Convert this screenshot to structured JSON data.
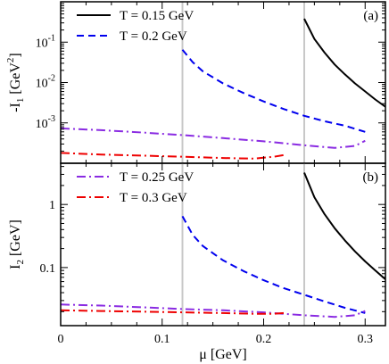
{
  "chart_data": [
    {
      "panel_label": "(a)",
      "type": "line",
      "xlim": [
        0,
        0.32
      ],
      "ylim": [
        0.0001,
        1
      ],
      "yscale": "log",
      "ylabel": "-I1 [GeV2]",
      "ylabel_parts": {
        "prefix": "-I",
        "sub": "1",
        "unit_open": " [GeV",
        "sup": "2",
        "unit_close": "]"
      },
      "xticks": [
        0,
        0.1,
        0.2,
        0.3
      ],
      "yticks": [
        0.001,
        0.01,
        0.1
      ],
      "ytick_labels": [
        {
          "base": "10",
          "exp": "-3"
        },
        {
          "base": "10",
          "exp": "-2"
        },
        {
          "base": "10",
          "exp": "-1"
        }
      ],
      "vlines": [
        0.12,
        0.24
      ],
      "legend": {
        "position": "top-left"
      },
      "series": [
        {
          "name": "T = 0.15 GeV",
          "color": "#000000",
          "dash": "solid",
          "x": [
            0.24,
            0.25,
            0.26,
            0.27,
            0.28,
            0.29,
            0.3,
            0.31,
            0.32
          ],
          "y": [
            0.38,
            0.12,
            0.055,
            0.028,
            0.016,
            0.0095,
            0.006,
            0.0038,
            0.0025
          ]
        },
        {
          "name": "T = 0.2 GeV",
          "color": "#0000ee",
          "dash": "dashed",
          "x": [
            0.12,
            0.13,
            0.14,
            0.16,
            0.18,
            0.2,
            0.22,
            0.24,
            0.26,
            0.28,
            0.3
          ],
          "y": [
            0.065,
            0.032,
            0.019,
            0.0095,
            0.0055,
            0.0034,
            0.0022,
            0.0015,
            0.0011,
            0.00085,
            0.0006
          ]
        },
        {
          "name": "T = 0.25 GeV",
          "color": "#8a2be2",
          "dash": "dashdot",
          "x": [
            0,
            0.04,
            0.08,
            0.12,
            0.16,
            0.2,
            0.24,
            0.27,
            0.29,
            0.3
          ],
          "y": [
            0.00073,
            0.00066,
            0.00058,
            0.0005,
            0.00042,
            0.00035,
            0.00028,
            0.00024,
            0.00027,
            0.00036
          ]
        },
        {
          "name": "T = 0.3 GeV",
          "color": "#ee0000",
          "dash": "dashdot",
          "x": [
            0,
            0.04,
            0.08,
            0.12,
            0.16,
            0.19,
            0.21,
            0.22
          ],
          "y": [
            0.00018,
            0.000165,
            0.000155,
            0.000145,
            0.000135,
            0.00013,
            0.000145,
            0.00016
          ]
        }
      ]
    },
    {
      "panel_label": "(b)",
      "type": "line",
      "xlim": [
        0,
        0.32
      ],
      "ylim": [
        0.012,
        4.5
      ],
      "yscale": "log",
      "xlabel": "μ [GeV]",
      "ylabel": "I2 [GeV]",
      "ylabel_parts": {
        "prefix": "I",
        "sub": "2",
        "unit_open": " [GeV",
        "sup": "",
        "unit_close": "]"
      },
      "xticks": [
        0,
        0.1,
        0.2,
        0.3
      ],
      "xtick_labels": [
        "0",
        "0.1",
        "0.2",
        "0.3"
      ],
      "yticks": [
        0.1,
        1
      ],
      "ytick_labels": [
        "0.1",
        "1"
      ],
      "vlines": [
        0.12,
        0.24
      ],
      "legend": {
        "position": "top-left"
      },
      "series": [
        {
          "name": "T = 0.15 GeV",
          "color": "#000000",
          "dash": "solid",
          "x": [
            0.24,
            0.25,
            0.26,
            0.27,
            0.28,
            0.29,
            0.3,
            0.31,
            0.32
          ],
          "y": [
            3.2,
            1.3,
            0.7,
            0.42,
            0.27,
            0.18,
            0.125,
            0.09,
            0.065
          ]
        },
        {
          "name": "T = 0.2 GeV",
          "color": "#0000ee",
          "dash": "dashed",
          "x": [
            0.12,
            0.13,
            0.14,
            0.16,
            0.18,
            0.2,
            0.22,
            0.24,
            0.26,
            0.28,
            0.3
          ],
          "y": [
            0.65,
            0.33,
            0.22,
            0.13,
            0.088,
            0.063,
            0.047,
            0.037,
            0.029,
            0.023,
            0.019
          ]
        },
        {
          "name": "T = 0.25 GeV",
          "color": "#8a2be2",
          "dash": "dashdot",
          "x": [
            0,
            0.04,
            0.08,
            0.12,
            0.16,
            0.2,
            0.24,
            0.27,
            0.29,
            0.3
          ],
          "y": [
            0.026,
            0.025,
            0.0235,
            0.022,
            0.021,
            0.0195,
            0.0175,
            0.0165,
            0.0175,
            0.0205
          ]
        },
        {
          "name": "T = 0.3 GeV",
          "color": "#ee0000",
          "dash": "dashdot",
          "x": [
            0,
            0.04,
            0.08,
            0.12,
            0.16,
            0.19,
            0.21,
            0.22
          ],
          "y": [
            0.021,
            0.0205,
            0.02,
            0.0195,
            0.019,
            0.0185,
            0.0185,
            0.019
          ]
        }
      ]
    }
  ]
}
